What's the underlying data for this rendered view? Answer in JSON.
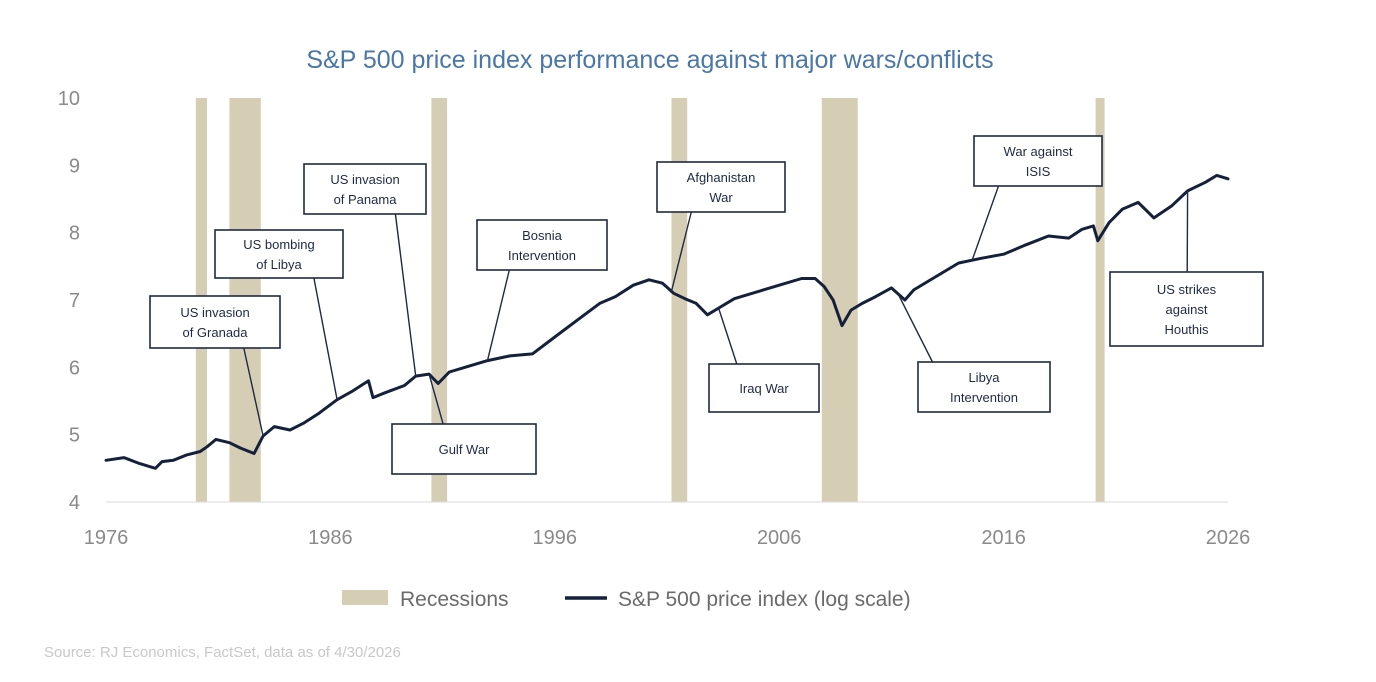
{
  "chart_data": {
    "type": "line",
    "title": "S&P 500 price index performance against major wars/conflicts",
    "xlim": [
      1976,
      2026
    ],
    "ylim": [
      4,
      10
    ],
    "x_ticks": [
      "1976",
      "1986",
      "1996",
      "2006",
      "2016",
      "2026"
    ],
    "y_ticks": [
      "4",
      "5",
      "6",
      "7",
      "8",
      "9",
      "10"
    ],
    "grid": false,
    "legend_position": "bottom",
    "legend": {
      "recessions_label": "Recessions",
      "series_label": "S&P 500 price index (log scale)"
    },
    "recessions": [
      [
        1980.0,
        1980.5
      ],
      [
        1981.5,
        1982.9
      ],
      [
        1990.5,
        1991.2
      ],
      [
        2001.2,
        2001.9
      ],
      [
        2007.9,
        2009.5
      ],
      [
        2020.1,
        2020.5
      ]
    ],
    "series": [
      {
        "name": "S&P 500 price index (log scale)",
        "x": [
          1976.0,
          1976.8,
          1977.5,
          1978.2,
          1978.5,
          1979.0,
          1979.6,
          1980.2,
          1980.5,
          1980.9,
          1981.5,
          1982.0,
          1982.6,
          1983.0,
          1983.5,
          1984.2,
          1984.8,
          1985.5,
          1986.3,
          1987.0,
          1987.7,
          1987.9,
          1988.5,
          1989.3,
          1989.8,
          1990.4,
          1990.8,
          1991.3,
          1992.0,
          1993.0,
          1994.0,
          1995.0,
          1996.0,
          1997.0,
          1998.0,
          1998.7,
          1999.5,
          2000.2,
          2000.8,
          2001.3,
          2001.8,
          2002.3,
          2002.8,
          2003.3,
          2004.0,
          2005.0,
          2006.0,
          2007.0,
          2007.6,
          2008.0,
          2008.4,
          2008.8,
          2009.2,
          2009.7,
          2010.3,
          2011.0,
          2011.6,
          2012.0,
          2013.0,
          2014.0,
          2015.0,
          2016.0,
          2017.0,
          2018.0,
          2018.9,
          2019.5,
          2020.0,
          2020.2,
          2020.7,
          2021.3,
          2022.0,
          2022.7,
          2023.5,
          2024.2,
          2025.0,
          2025.5,
          2026.0
        ],
        "y": [
          4.62,
          4.66,
          4.57,
          4.5,
          4.6,
          4.62,
          4.7,
          4.75,
          4.82,
          4.93,
          4.88,
          4.8,
          4.72,
          4.98,
          5.12,
          5.07,
          5.17,
          5.32,
          5.52,
          5.65,
          5.8,
          5.55,
          5.63,
          5.73,
          5.87,
          5.9,
          5.76,
          5.93,
          6.0,
          6.1,
          6.17,
          6.2,
          6.45,
          6.7,
          6.95,
          7.05,
          7.22,
          7.3,
          7.25,
          7.1,
          7.02,
          6.95,
          6.78,
          6.88,
          7.02,
          7.12,
          7.22,
          7.32,
          7.32,
          7.2,
          7.0,
          6.62,
          6.85,
          6.95,
          7.05,
          7.18,
          7.0,
          7.15,
          7.35,
          7.55,
          7.62,
          7.68,
          7.82,
          7.95,
          7.92,
          8.05,
          8.1,
          7.88,
          8.15,
          8.35,
          8.45,
          8.22,
          8.4,
          8.62,
          8.75,
          8.85,
          8.8
        ]
      }
    ],
    "annotations": [
      {
        "lines": [
          "US invasion",
          "of Granada"
        ],
        "year": 1983.0
      },
      {
        "lines": [
          "US bombing",
          "of Libya"
        ],
        "year": 1986.3
      },
      {
        "lines": [
          "US invasion",
          "of Panama"
        ],
        "year": 1989.8
      },
      {
        "lines": [
          "Gulf War"
        ],
        "year": 1990.4
      },
      {
        "lines": [
          "Bosnia",
          "Intervention"
        ],
        "year": 1993.0
      },
      {
        "lines": [
          "Afghanistan",
          "War"
        ],
        "year": 2001.2
      },
      {
        "lines": [
          "Iraq War"
        ],
        "year": 2003.3
      },
      {
        "lines": [
          "Libya",
          "Intervention"
        ],
        "year": 2011.3
      },
      {
        "lines": [
          "War against",
          "ISIS"
        ],
        "year": 2014.6
      },
      {
        "lines": [
          "US strikes",
          "against",
          "Houthis"
        ],
        "year": 2024.2
      }
    ],
    "source": "Source: RJ Economics, FactSet, data as of 4/30/2026"
  }
}
